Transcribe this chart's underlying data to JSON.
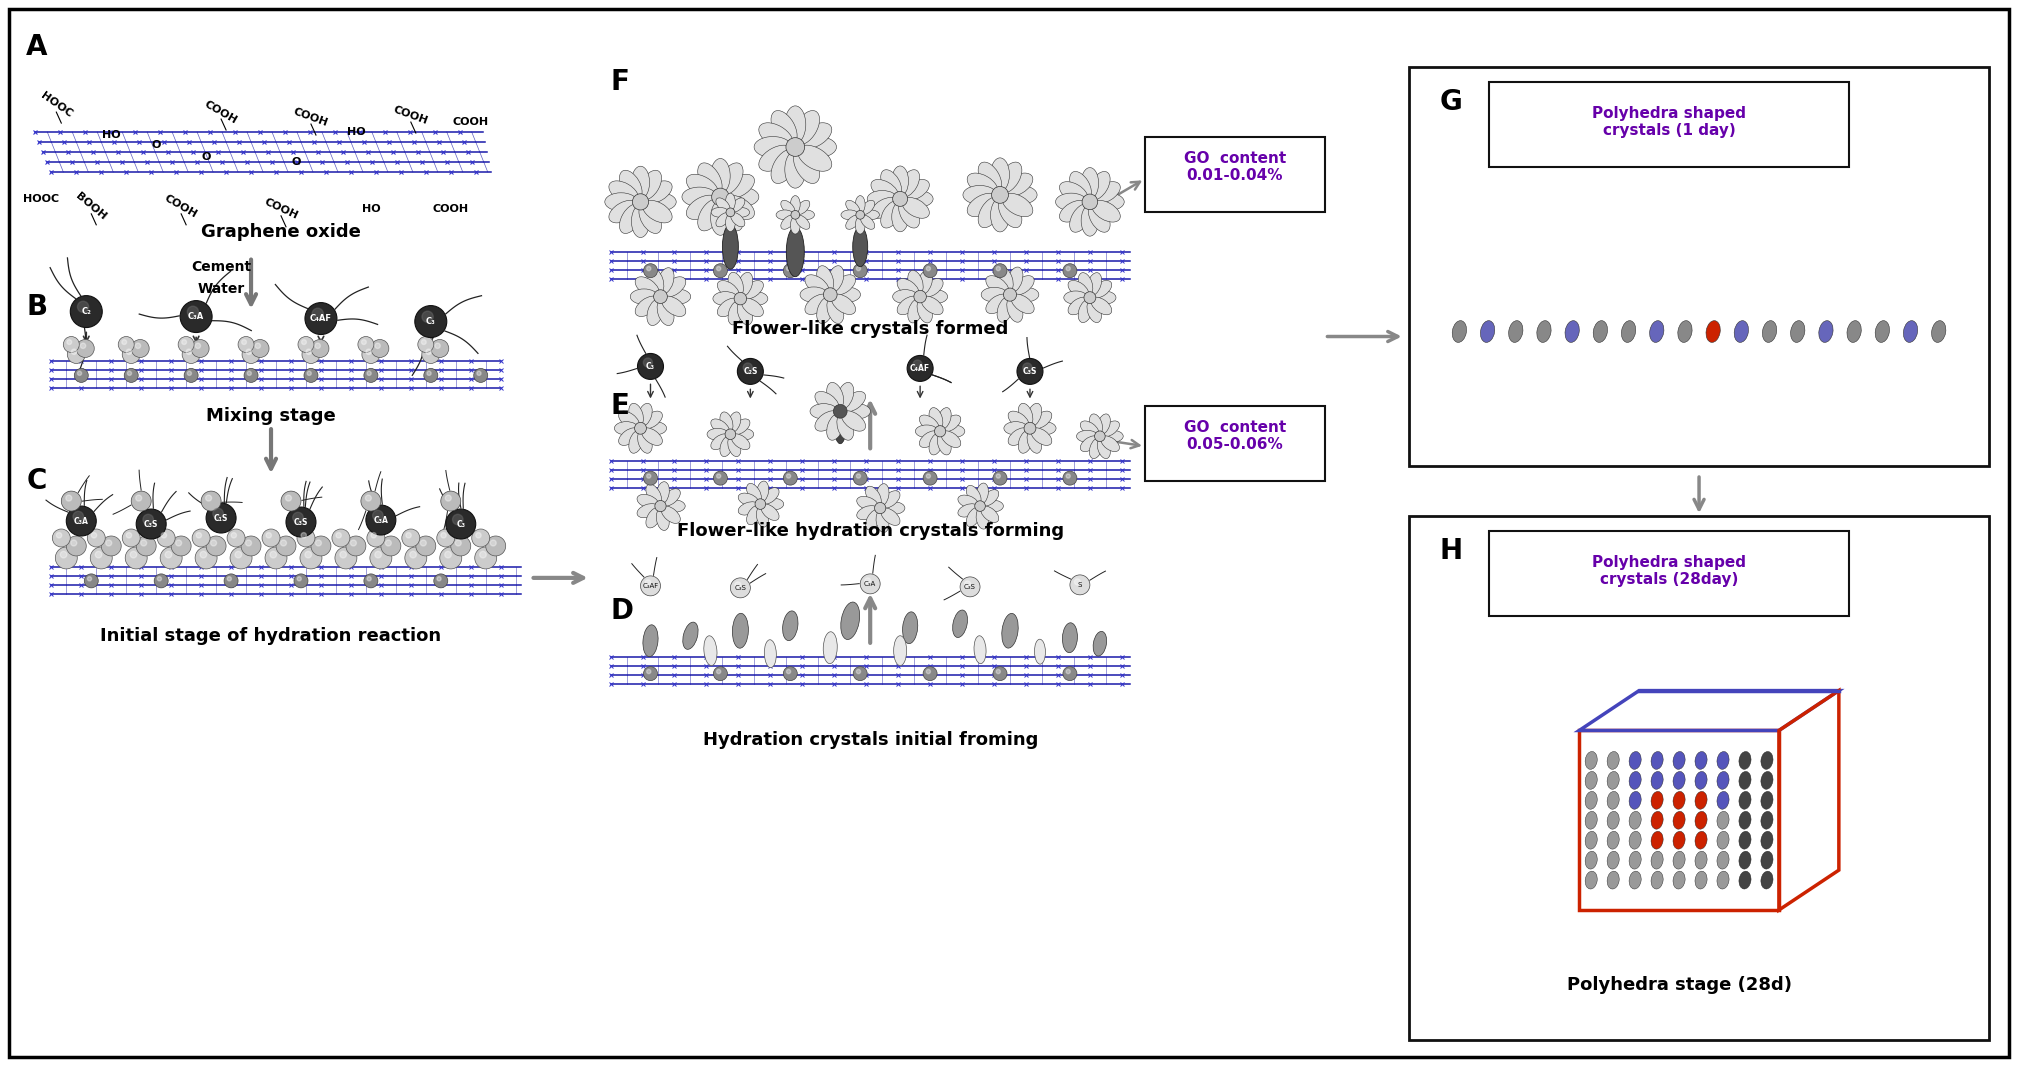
{
  "bg_color": "#ffffff",
  "captions": {
    "A_label": "A",
    "B_label": "B",
    "C_label": "C",
    "D_label": "D",
    "E_label": "E",
    "F_label": "F",
    "G_label": "G",
    "H_label": "H",
    "graphene_oxide": "Graphene oxide",
    "cement": "Cement",
    "water": "Water",
    "mixing": "Mixing stage",
    "initial_hydration": "Initial stage of hydration reaction",
    "D_caption": "Hydration crystals initial froming",
    "E_caption": "Flower-like hydration crystals forming",
    "F_caption": "Flower-like crystals formed",
    "G_title": "Polyhedra shaped\ncrystals (1 day)",
    "H_title": "Polyhedra shaped\ncrystals (28day)",
    "H_sub": "Polyhedra stage (28d)"
  },
  "go_content_1": "GO  content\n0.01-0.04%",
  "go_content_2": "GO  content\n0.05-0.06%",
  "purple_color": "#6600aa",
  "arrow_color": "#888888",
  "dark_gray": "#555555",
  "light_gray": "#cccccc",
  "med_gray": "#999999",
  "graphene_line": "#1a1aaa",
  "graphene_dot": "#3333cc",
  "black": "#111111",
  "red_crystal": "#cc2200",
  "blue_crystal": "#4444bb",
  "label_fontsize": 20,
  "caption_fontsize": 13,
  "small_fontsize": 9
}
